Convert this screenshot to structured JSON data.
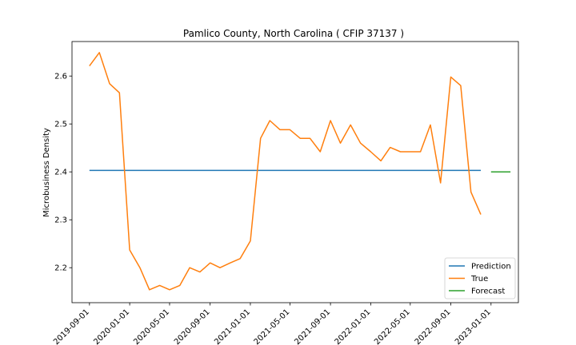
{
  "chart_data": {
    "type": "line",
    "title": "Pamlico County, North Carolina ( CFIP 37137 )",
    "xlabel": "",
    "ylabel": "Microbusiness Density",
    "xlim": [
      "2019-07-10",
      "2023-03-25"
    ],
    "ylim": [
      2.127,
      2.672
    ],
    "x_ticks": [
      "2019-09-01",
      "2020-01-01",
      "2020-05-01",
      "2020-09-01",
      "2021-01-01",
      "2021-05-01",
      "2021-09-01",
      "2022-01-01",
      "2022-05-01",
      "2022-09-01",
      "2023-01-01"
    ],
    "y_ticks": [
      2.2,
      2.3,
      2.4,
      2.5,
      2.6
    ],
    "y_tick_labels": [
      "2.2",
      "2.3",
      "2.4",
      "2.5",
      "2.6"
    ],
    "legend_position": "lower right",
    "grid": false,
    "series": [
      {
        "name": "Prediction",
        "color": "#1f77b4",
        "x": [
          "2019-09-01",
          "2022-12-01"
        ],
        "y": [
          2.403,
          2.403
        ]
      },
      {
        "name": "True",
        "color": "#ff7f0e",
        "x": [
          "2019-09-01",
          "2019-10-01",
          "2019-11-01",
          "2019-12-01",
          "2020-01-01",
          "2020-02-01",
          "2020-03-01",
          "2020-04-01",
          "2020-05-01",
          "2020-06-01",
          "2020-07-01",
          "2020-08-01",
          "2020-09-01",
          "2020-10-01",
          "2020-11-01",
          "2020-12-01",
          "2021-01-01",
          "2021-02-01",
          "2021-03-01",
          "2021-04-01",
          "2021-05-01",
          "2021-06-01",
          "2021-07-01",
          "2021-08-01",
          "2021-09-01",
          "2021-10-01",
          "2021-11-01",
          "2021-12-01",
          "2022-01-01",
          "2022-02-01",
          "2022-03-01",
          "2022-04-01",
          "2022-05-01",
          "2022-06-01",
          "2022-07-01",
          "2022-08-01",
          "2022-09-01",
          "2022-10-01",
          "2022-11-01",
          "2022-12-01"
        ],
        "y": [
          2.621,
          2.649,
          2.584,
          2.565,
          2.237,
          2.2,
          2.154,
          2.163,
          2.154,
          2.163,
          2.2,
          2.191,
          2.21,
          2.2,
          2.21,
          2.219,
          2.256,
          2.47,
          2.507,
          2.488,
          2.488,
          2.47,
          2.47,
          2.442,
          2.507,
          2.46,
          2.498,
          2.46,
          2.442,
          2.423,
          2.451,
          2.442,
          2.442,
          2.442,
          2.498,
          2.377,
          2.598,
          2.58,
          2.358,
          2.311
        ]
      },
      {
        "name": "Forecast",
        "color": "#2ca02c",
        "x": [
          "2023-01-01",
          "2023-03-01"
        ],
        "y": [
          2.4,
          2.4
        ]
      }
    ]
  }
}
